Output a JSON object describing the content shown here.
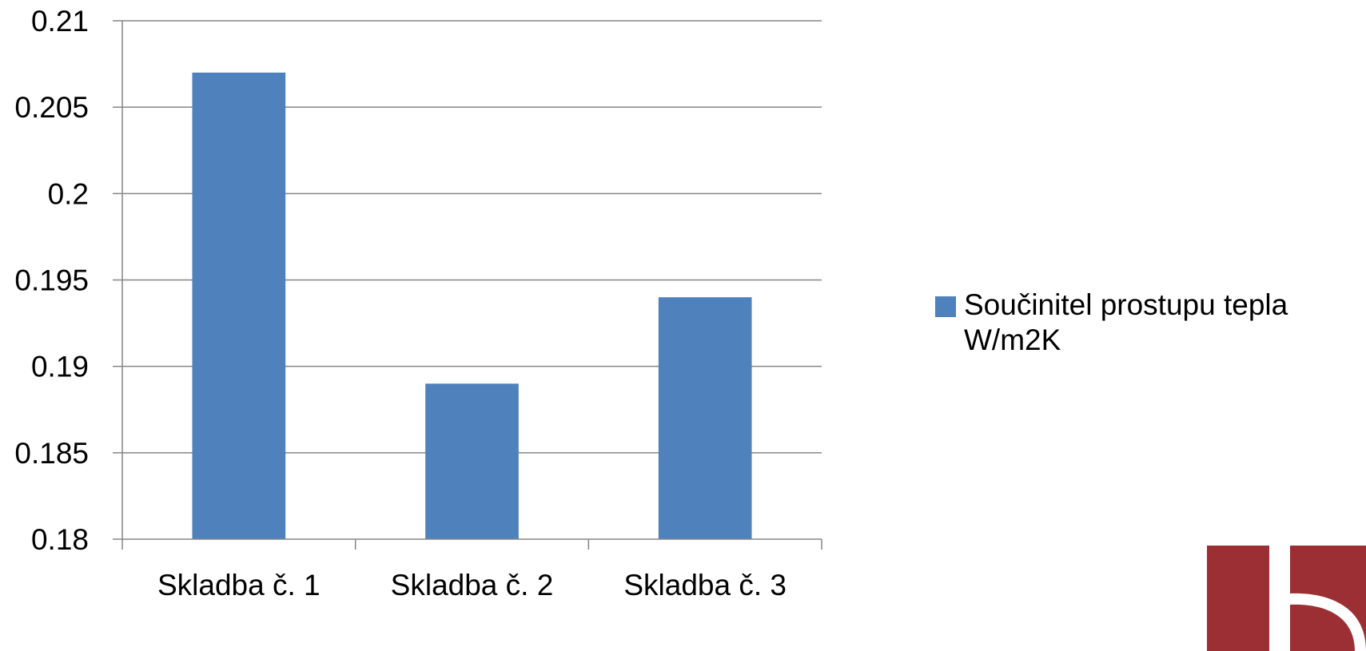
{
  "chart_data": {
    "type": "bar",
    "categories": [
      "Skladba č. 1",
      "Skladba č. 2",
      "Skladba č. 3"
    ],
    "series": [
      {
        "name": "Součinitel prostupu tepla W/m2K",
        "values": [
          0.207,
          0.189,
          0.194
        ]
      }
    ],
    "yticks": [
      "0.18",
      "0.185",
      "0.19",
      "0.195",
      "0.2",
      "0.205",
      "0.21"
    ],
    "ylim": [
      0.18,
      0.21
    ],
    "grid": true,
    "legend_position": "right",
    "colors": {
      "bar": "#4f81bd",
      "grid": "#868686",
      "axis": "#868686"
    }
  },
  "legend": {
    "label": "Součinitel prostupu tepla W/m2K"
  },
  "logo": {
    "icon": "institution-logo",
    "color": "#9b2f33"
  }
}
